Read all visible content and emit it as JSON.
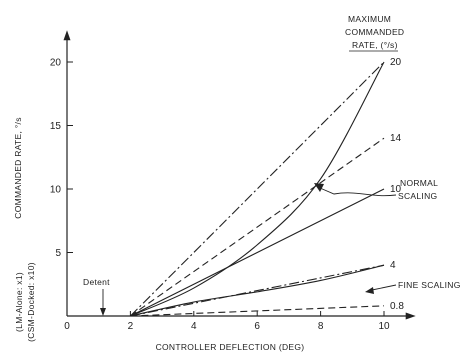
{
  "chart_data": {
    "type": "line",
    "xlabel": "CONTROLLER DEFLECTION (DEG)",
    "ylabel": "COMMANDED RATE, °/s",
    "ylabel_extra": [
      "(LM-Alone: x1)",
      "(CSM-Docked: x10)"
    ],
    "xlim": [
      0,
      11
    ],
    "ylim": [
      0,
      22.5
    ],
    "x_ticks": [
      0,
      2,
      4,
      6,
      8,
      10
    ],
    "y_ticks": [
      5,
      10,
      15,
      20
    ],
    "grid": false,
    "legend_title": [
      "MAXIMUM",
      "COMMANDED",
      "RATE, (°/s)"
    ],
    "annotations": {
      "detent": "Detent",
      "normal_scaling": [
        "NORMAL",
        "SCALING"
      ],
      "fine_scaling": "FINE SCALING"
    },
    "series": [
      {
        "name": "20",
        "style": "dashdot",
        "points": [
          [
            2,
            0
          ],
          [
            10,
            20
          ]
        ]
      },
      {
        "name": "20",
        "style": "solid",
        "points": [
          [
            2,
            0
          ],
          [
            4,
            2.2
          ],
          [
            6,
            5.6
          ],
          [
            8,
            10.8
          ],
          [
            10,
            20
          ]
        ]
      },
      {
        "name": "14",
        "style": "dashed",
        "points": [
          [
            2,
            0
          ],
          [
            10,
            14
          ]
        ]
      },
      {
        "name": "10",
        "style": "solid",
        "points": [
          [
            2,
            0
          ],
          [
            10,
            10
          ]
        ]
      },
      {
        "name": "4",
        "style": "dashdot",
        "points": [
          [
            2,
            0
          ],
          [
            10,
            4
          ]
        ]
      },
      {
        "name": "4",
        "style": "solid",
        "points": [
          [
            2,
            0
          ],
          [
            4,
            1.1
          ],
          [
            6,
            1.9
          ],
          [
            8,
            2.8
          ],
          [
            10,
            4
          ]
        ]
      },
      {
        "name": "0.8",
        "style": "dashed",
        "points": [
          [
            2,
            0
          ],
          [
            10,
            0.8
          ]
        ]
      }
    ]
  }
}
